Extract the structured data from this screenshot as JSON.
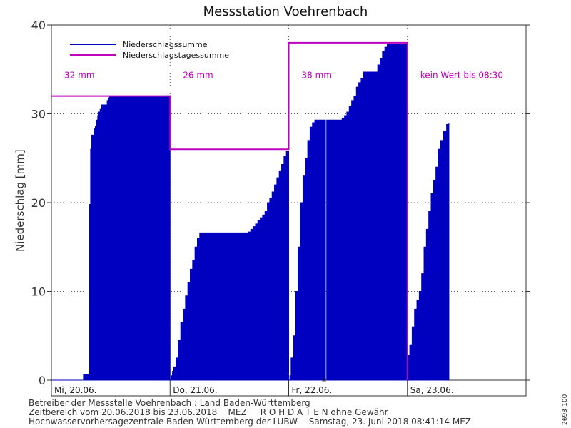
{
  "chart_data": {
    "type": "area",
    "title": "Messstation Voehrenbach",
    "xlabel": "",
    "ylabel": "Niederschlag [mm]",
    "ylim": [
      0,
      40
    ],
    "xlim_days": [
      0,
      4
    ],
    "y_ticks": [
      0,
      10,
      20,
      30,
      40
    ],
    "x_ticks": [
      {
        "day": 0,
        "label": "Mi, 20.06."
      },
      {
        "day": 1,
        "label": "Do, 21.06."
      },
      {
        "day": 2,
        "label": "Fr, 22.06."
      },
      {
        "day": 3,
        "label": "Sa, 23.06."
      }
    ],
    "grid": true,
    "legend_position": "top-left",
    "series": [
      {
        "name": "Niederschlagssumme",
        "color": "#0000c0",
        "segments": [
          {
            "x": [
              0.0,
              0.26,
              0.27,
              0.31,
              0.32,
              0.33,
              0.34,
              0.36,
              0.37,
              0.38,
              0.39,
              0.4,
              0.41,
              0.42,
              0.46,
              0.47,
              0.48,
              0.49,
              0.5,
              1.0
            ],
            "y": [
              0.0,
              0.0,
              0.6,
              0.6,
              19.8,
              26.0,
              27.6,
              28.3,
              28.6,
              29.3,
              29.8,
              30.2,
              30.5,
              31.0,
              31.0,
              31.5,
              31.8,
              32.0,
              32.0,
              32.0
            ]
          },
          {
            "x": [
              1.0,
              1.01,
              1.02,
              1.03,
              1.05,
              1.07,
              1.09,
              1.11,
              1.13,
              1.15,
              1.17,
              1.19,
              1.21,
              1.23,
              1.25,
              1.27,
              1.29,
              1.31,
              1.33,
              1.55,
              1.66,
              1.68,
              1.7,
              1.72,
              1.74,
              1.76,
              1.78,
              1.8,
              1.82,
              1.84,
              1.86,
              1.88,
              1.9,
              1.92,
              1.94,
              1.96,
              1.98,
              2.0
            ],
            "y": [
              0.0,
              0.5,
              1.0,
              1.5,
              2.5,
              4.5,
              6.5,
              8.0,
              9.5,
              11.0,
              12.5,
              13.5,
              15.0,
              16.0,
              16.6,
              16.6,
              16.6,
              16.6,
              16.6,
              16.6,
              16.7,
              17.0,
              17.3,
              17.6,
              18.0,
              18.3,
              18.6,
              19.0,
              20.0,
              20.5,
              21.2,
              22.0,
              22.8,
              23.5,
              24.3,
              25.2,
              25.8,
              25.8
            ]
          },
          {
            "x": [
              2.0,
              2.01,
              2.02,
              2.04,
              2.06,
              2.08,
              2.1,
              2.12,
              2.14,
              2.16,
              2.18,
              2.2,
              2.22,
              2.28,
              2.29,
              2.3,
              2.31,
              2.32,
              2.36,
              2.37,
              2.39,
              2.41,
              2.43,
              2.45,
              2.47,
              2.49,
              2.51,
              2.53,
              2.55,
              2.57,
              2.59,
              2.61,
              2.63,
              2.65,
              2.67,
              2.69,
              2.71,
              2.73,
              2.75,
              2.77,
              2.79,
              2.81,
              2.83,
              2.85,
              2.87,
              2.89,
              2.91,
              2.93,
              2.95,
              2.97,
              2.99,
              3.0
            ],
            "y": [
              0.0,
              0.5,
              2.5,
              5.0,
              10.0,
              15.0,
              20.0,
              23.0,
              25.0,
              27.0,
              28.5,
              29.0,
              29.3,
              29.3,
              29.3,
              29.3,
              0.0,
              29.3,
              29.3,
              29.3,
              29.3,
              29.3,
              29.3,
              29.5,
              29.8,
              30.2,
              30.8,
              31.5,
              32.0,
              33.0,
              33.5,
              34.0,
              34.7,
              34.7,
              34.7,
              34.7,
              34.7,
              34.7,
              35.5,
              36.2,
              37.0,
              37.5,
              37.8,
              37.8,
              37.8,
              37.8,
              37.8,
              37.8,
              37.8,
              37.8,
              37.8,
              37.8
            ]
          },
          {
            "x": [
              3.0,
              3.01,
              3.02,
              3.04,
              3.06,
              3.08,
              3.1,
              3.12,
              3.14,
              3.16,
              3.18,
              3.2,
              3.22,
              3.24,
              3.26,
              3.28,
              3.3,
              3.33,
              3.35
            ],
            "y": [
              0.0,
              2.8,
              4.0,
              6.0,
              8.0,
              9.0,
              10.0,
              12.0,
              15.0,
              17.0,
              19.0,
              21.0,
              22.5,
              24.0,
              26.0,
              27.0,
              28.0,
              28.8,
              29.0
            ]
          }
        ]
      },
      {
        "name": "Niederschlagstagessumme",
        "color": "#c000c0",
        "daily_totals": [
          32,
          26,
          38
        ],
        "daily_labels": [
          "32 mm",
          "26 mm",
          "38 mm",
          "kein Wert bis 08:30"
        ]
      }
    ]
  },
  "footer": {
    "line1": "Betreiber der Messstelle Voehrenbach : Land Baden-Württemberg",
    "line2": "Zeitbereich vom 20.06.2018 bis 23.06.2018    MEZ     R O H D A T E N ohne Gewähr",
    "line3": "Hochwasservorhersagezentrale Baden-Württemberg der LUBW -  Samstag, 23. Juni 2018 08:41:14 MEZ"
  },
  "side_code": "2693-100",
  "colors": {
    "sum": "#0000c0",
    "daily": "#c000c0",
    "grid": "#555555",
    "axis": "#333333"
  }
}
